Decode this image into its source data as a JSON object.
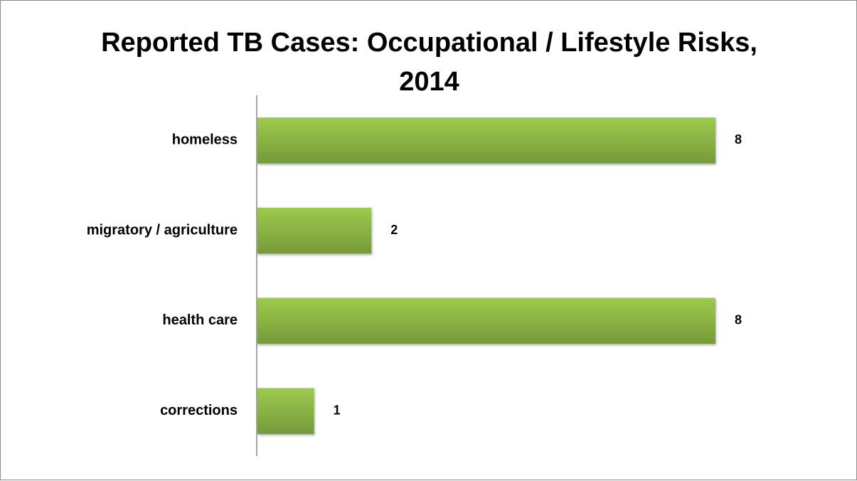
{
  "chart_data": {
    "type": "bar",
    "orientation": "horizontal",
    "title": "Reported TB Cases: Occupational / Lifestyle Risks, 2014",
    "categories": [
      "homeless",
      "migratory / agriculture",
      "health care",
      "corrections"
    ],
    "values": [
      8,
      2,
      8,
      1
    ],
    "color": "#8db545"
  }
}
